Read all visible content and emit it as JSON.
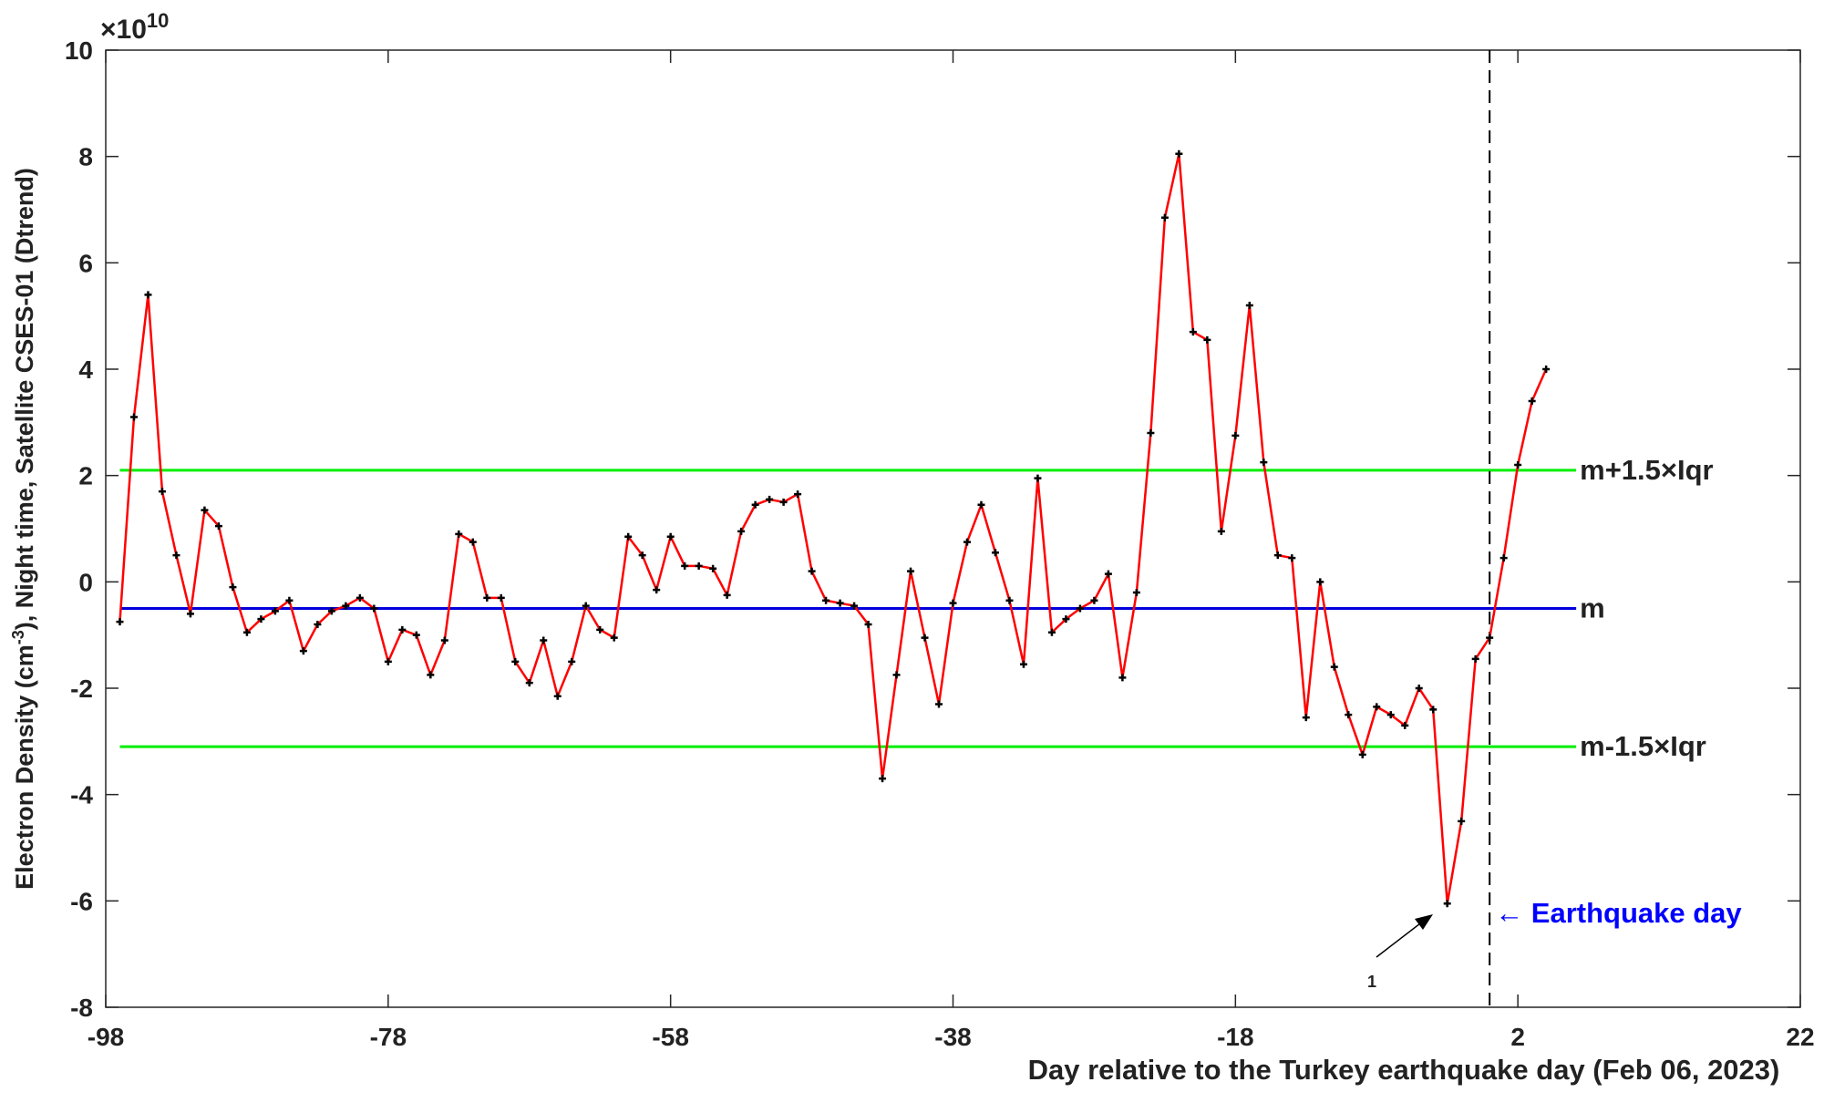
{
  "chart_data": {
    "type": "line",
    "xlabel": "Day relative to the Turkey earthquake day (Feb 06, 2023)",
    "ylabel": {
      "pre": "Electron Density (cm",
      "sup": "-3",
      "post": "), Night time, Satellite CSES-01 (Dtrend)"
    },
    "y_multiplier": {
      "base": "×10",
      "exp": "10"
    },
    "xlim": [
      -98,
      22
    ],
    "xticks": [
      -98,
      -78,
      -58,
      -38,
      -18,
      2,
      22
    ],
    "ylim": [
      -8,
      10
    ],
    "yticks": [
      -8,
      -6,
      -4,
      -2,
      0,
      2,
      4,
      6,
      8,
      10
    ],
    "x": [
      -97,
      -96,
      -95,
      -94,
      -93,
      -92,
      -91,
      -90,
      -89,
      -88,
      -87,
      -86,
      -85,
      -84,
      -83,
      -82,
      -81,
      -80,
      -79,
      -78,
      -77,
      -76,
      -75,
      -74,
      -73,
      -72,
      -71,
      -70,
      -69,
      -68,
      -67,
      -66,
      -65,
      -64,
      -63,
      -62,
      -61,
      -60,
      -59,
      -58,
      -57,
      -56,
      -55,
      -54,
      -53,
      -52,
      -51,
      -50,
      -49,
      -48,
      -47,
      -46,
      -45,
      -44,
      -43,
      -42,
      -41,
      -40,
      -39,
      -38,
      -37,
      -36,
      -35,
      -34,
      -33,
      -32,
      -31,
      -30,
      -29,
      -28,
      -27,
      -26,
      -25,
      -24,
      -23,
      -22,
      -21,
      -20,
      -19,
      -18,
      -17,
      -16,
      -15,
      -14,
      -13,
      -12,
      -11,
      -10,
      -9,
      -8,
      -7,
      -6,
      -5,
      -4,
      -3,
      -2,
      -1,
      0,
      1,
      2,
      3,
      4
    ],
    "series": [
      {
        "name": "Electron density",
        "color": "#ff0000",
        "marker_color": "#000000",
        "values": [
          -0.75,
          3.1,
          5.4,
          1.7,
          0.5,
          -0.6,
          1.35,
          1.05,
          -0.1,
          -0.95,
          -0.7,
          -0.55,
          -0.35,
          -1.3,
          -0.8,
          -0.55,
          -0.45,
          -0.3,
          -0.5,
          -1.5,
          -0.9,
          -1.0,
          -1.75,
          -1.1,
          0.9,
          0.75,
          -0.3,
          -0.3,
          -1.5,
          -1.9,
          -1.1,
          -2.15,
          -1.5,
          -0.45,
          -0.9,
          -1.05,
          0.85,
          0.5,
          -0.15,
          0.85,
          0.3,
          0.3,
          0.25,
          -0.25,
          0.95,
          1.45,
          1.55,
          1.5,
          1.65,
          0.2,
          -0.35,
          -0.4,
          -0.45,
          -0.8,
          -3.7,
          -1.75,
          0.2,
          -1.05,
          -2.3,
          -0.4,
          0.75,
          1.45,
          0.55,
          -0.35,
          -1.55,
          1.95,
          -0.95,
          -0.7,
          -0.5,
          -0.35,
          0.15,
          -1.8,
          -0.2,
          2.8,
          6.85,
          8.05,
          4.7,
          4.55,
          0.95,
          2.75,
          5.2,
          2.25,
          0.5,
          0.45,
          -2.55,
          0.0,
          -1.6,
          -2.5,
          -3.25,
          -2.35,
          -2.5,
          -2.7,
          -2.0,
          -2.4,
          -6.05,
          -4.5,
          -1.45,
          -1.05,
          0.45,
          2.2,
          3.4,
          4.0
        ]
      }
    ],
    "hlines": [
      {
        "value": 2.1,
        "label": "m+1.5×Iqr",
        "color": "#00ee00"
      },
      {
        "value": -0.5,
        "label": "m",
        "color": "#0000dd"
      },
      {
        "value": -3.1,
        "label": "m-1.5×Iqr",
        "color": "#00ee00"
      }
    ],
    "vline": {
      "value": 0,
      "color": "#000000",
      "label": "← Earthquake day",
      "label_color": "#0000ff"
    },
    "arrow_label": "1"
  }
}
